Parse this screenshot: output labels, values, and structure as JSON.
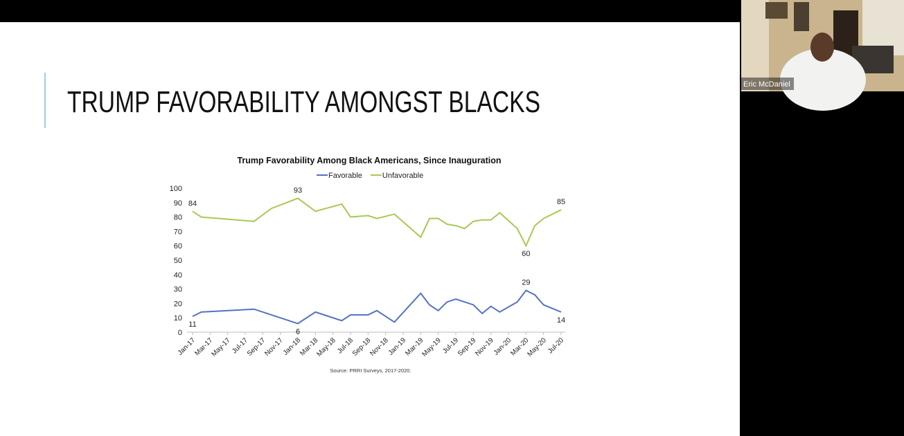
{
  "slide": {
    "title": "TRUMP FAVORABILITY AMONGST BLACKS"
  },
  "participant": {
    "name": "Eric McDaniel"
  },
  "chart_data": {
    "type": "line",
    "title": "Trump Favorability Among Black Americans, Since Inauguration",
    "source": "Source: PRRI Surveys, 2017-2020.",
    "x": [
      "2017-01",
      "2017-02",
      "2017-08",
      "2017-10",
      "2018-01",
      "2018-03",
      "2018-06",
      "2018-07",
      "2018-09",
      "2018-10",
      "2018-12",
      "2019-03",
      "2019-04",
      "2019-05",
      "2019-06",
      "2019-07",
      "2019-08",
      "2019-09",
      "2019-10",
      "2019-11",
      "2019-12",
      "2020-02",
      "2020-03",
      "2020-04",
      "2020-05",
      "2020-07"
    ],
    "series": [
      {
        "name": "Favorable",
        "color": "#5571c2",
        "values": [
          11,
          14,
          16,
          12,
          6,
          14,
          8,
          12,
          12,
          15,
          7,
          27,
          19,
          15,
          21,
          23,
          21,
          19,
          13,
          18,
          14,
          21,
          29,
          26,
          19,
          14
        ],
        "value_labels": [
          "11",
          null,
          null,
          null,
          "6",
          null,
          null,
          null,
          null,
          null,
          null,
          null,
          null,
          null,
          null,
          null,
          null,
          null,
          null,
          null,
          null,
          null,
          "29",
          null,
          null,
          "14"
        ]
      },
      {
        "name": "Unfavorable",
        "color": "#a9c952",
        "values": [
          84,
          80,
          77,
          86,
          93,
          84,
          89,
          80,
          81,
          79,
          82,
          66,
          79,
          79,
          75,
          74,
          72,
          77,
          78,
          78,
          83,
          72,
          60,
          74,
          79,
          85
        ],
        "value_labels": [
          "84",
          null,
          null,
          null,
          "93",
          null,
          null,
          null,
          null,
          null,
          null,
          null,
          null,
          null,
          null,
          null,
          null,
          null,
          null,
          null,
          null,
          null,
          "60",
          null,
          null,
          "85"
        ]
      }
    ],
    "xlim": [
      "2017-01",
      "2020-07"
    ],
    "xticks": [
      {
        "value": "2017-01",
        "label": "Jan-17"
      },
      {
        "value": "2017-03",
        "label": "Mar-17"
      },
      {
        "value": "2017-05",
        "label": "May-17"
      },
      {
        "value": "2017-07",
        "label": "Jul-17"
      },
      {
        "value": "2017-09",
        "label": "Sep-17"
      },
      {
        "value": "2017-11",
        "label": "Nov-17"
      },
      {
        "value": "2018-01",
        "label": "Jan-18"
      },
      {
        "value": "2018-03",
        "label": "Mar-18"
      },
      {
        "value": "2018-05",
        "label": "May-18"
      },
      {
        "value": "2018-07",
        "label": "Jul-18"
      },
      {
        "value": "2018-09",
        "label": "Sep-18"
      },
      {
        "value": "2018-11",
        "label": "Nov-18"
      },
      {
        "value": "2019-01",
        "label": "Jan-19"
      },
      {
        "value": "2019-03",
        "label": "Mar-19"
      },
      {
        "value": "2019-05",
        "label": "May-19"
      },
      {
        "value": "2019-07",
        "label": "Jul-19"
      },
      {
        "value": "2019-09",
        "label": "Sep-19"
      },
      {
        "value": "2019-11",
        "label": "Nov-19"
      },
      {
        "value": "2020-01",
        "label": "Jan-20"
      },
      {
        "value": "2020-03",
        "label": "Mar-20"
      },
      {
        "value": "2020-05",
        "label": "May-20"
      },
      {
        "value": "2020-07",
        "label": "Jul-20"
      }
    ],
    "ylim": [
      0,
      100
    ],
    "yticks": [
      0,
      10,
      20,
      30,
      40,
      50,
      60,
      70,
      80,
      90,
      100
    ],
    "grid": false,
    "legend": "top"
  }
}
